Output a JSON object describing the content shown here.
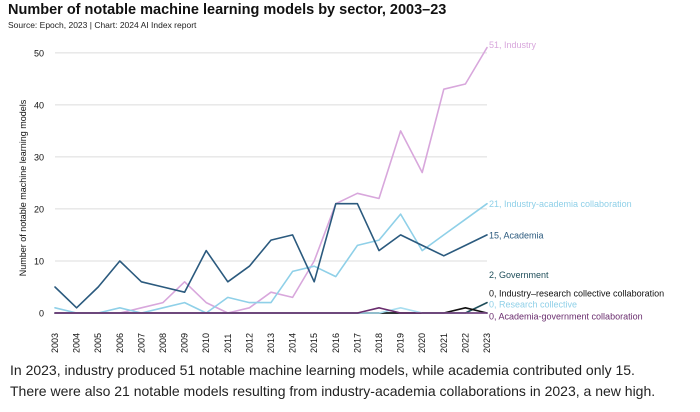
{
  "title": "Number of notable machine learning models by sector, 2003–23",
  "source": "Source: Epoch, 2023 | Chart: 2024 AI Index report",
  "caption": {
    "line1": "In 2023, industry produced 51 notable machine learning models, while academia contributed only 15.",
    "line2": "There were also 21 notable models resulting from industry-academia collaborations in 2023, a new high."
  },
  "chart_data": {
    "type": "line",
    "title": "Number of notable machine learning models by sector, 2003–23",
    "xlabel": "",
    "ylabel": "Number of notable machine learning models",
    "x": [
      2003,
      2004,
      2005,
      2006,
      2007,
      2008,
      2009,
      2010,
      2011,
      2012,
      2013,
      2014,
      2015,
      2016,
      2017,
      2018,
      2019,
      2020,
      2021,
      2022,
      2023
    ],
    "ylim": [
      0,
      54
    ],
    "yticks": [
      0,
      10,
      20,
      30,
      40,
      50
    ],
    "grid": "horizontal",
    "series": [
      {
        "name": "Industry",
        "end_label": "51, Industry",
        "color": "#d8a7dc",
        "values": [
          0,
          0,
          0,
          0,
          1,
          2,
          6,
          2,
          0,
          1,
          4,
          3,
          10,
          21,
          23,
          22,
          35,
          27,
          43,
          44,
          51
        ]
      },
      {
        "name": "Industry-academia collaboration",
        "end_label": "21, Industry-academia collaboration",
        "color": "#8fd0e8",
        "values": [
          1,
          0,
          0,
          1,
          0,
          1,
          2,
          0,
          3,
          2,
          2,
          8,
          9,
          7,
          13,
          14,
          19,
          12,
          15,
          18,
          21
        ]
      },
      {
        "name": "Academia",
        "end_label": "15, Academia",
        "color": "#2b5a7e",
        "values": [
          5,
          1,
          5,
          10,
          6,
          5,
          4,
          12,
          6,
          9,
          14,
          15,
          6,
          21,
          21,
          12,
          15,
          13,
          11,
          13,
          15
        ]
      },
      {
        "name": "Government",
        "end_label": "2, Government",
        "color": "#1f4e5a",
        "values": [
          0,
          0,
          0,
          0,
          0,
          0,
          0,
          0,
          0,
          0,
          0,
          0,
          0,
          0,
          0,
          0,
          0,
          0,
          0,
          0,
          2
        ]
      },
      {
        "name": "Industry–research collective collaboration",
        "end_label": "0, Industry–research collective collaboration",
        "color": "#111111",
        "values": [
          0,
          0,
          0,
          0,
          0,
          0,
          0,
          0,
          0,
          0,
          0,
          0,
          0,
          0,
          0,
          0,
          0,
          0,
          0,
          1,
          0
        ]
      },
      {
        "name": "Research collective",
        "end_label": "0, Research collective",
        "color": "#a8def0",
        "values": [
          0,
          0,
          0,
          0,
          0,
          0,
          0,
          0,
          0,
          0,
          0,
          0,
          0,
          0,
          0,
          0,
          1,
          0,
          0,
          0,
          0
        ]
      },
      {
        "name": "Academia-government collaboration",
        "end_label": "0, Academia-government collaboration",
        "color": "#6a2d6e",
        "values": [
          0,
          0,
          0,
          0,
          0,
          0,
          0,
          0,
          0,
          0,
          0,
          0,
          0,
          0,
          0,
          1,
          0,
          0,
          0,
          0,
          0
        ]
      }
    ]
  }
}
